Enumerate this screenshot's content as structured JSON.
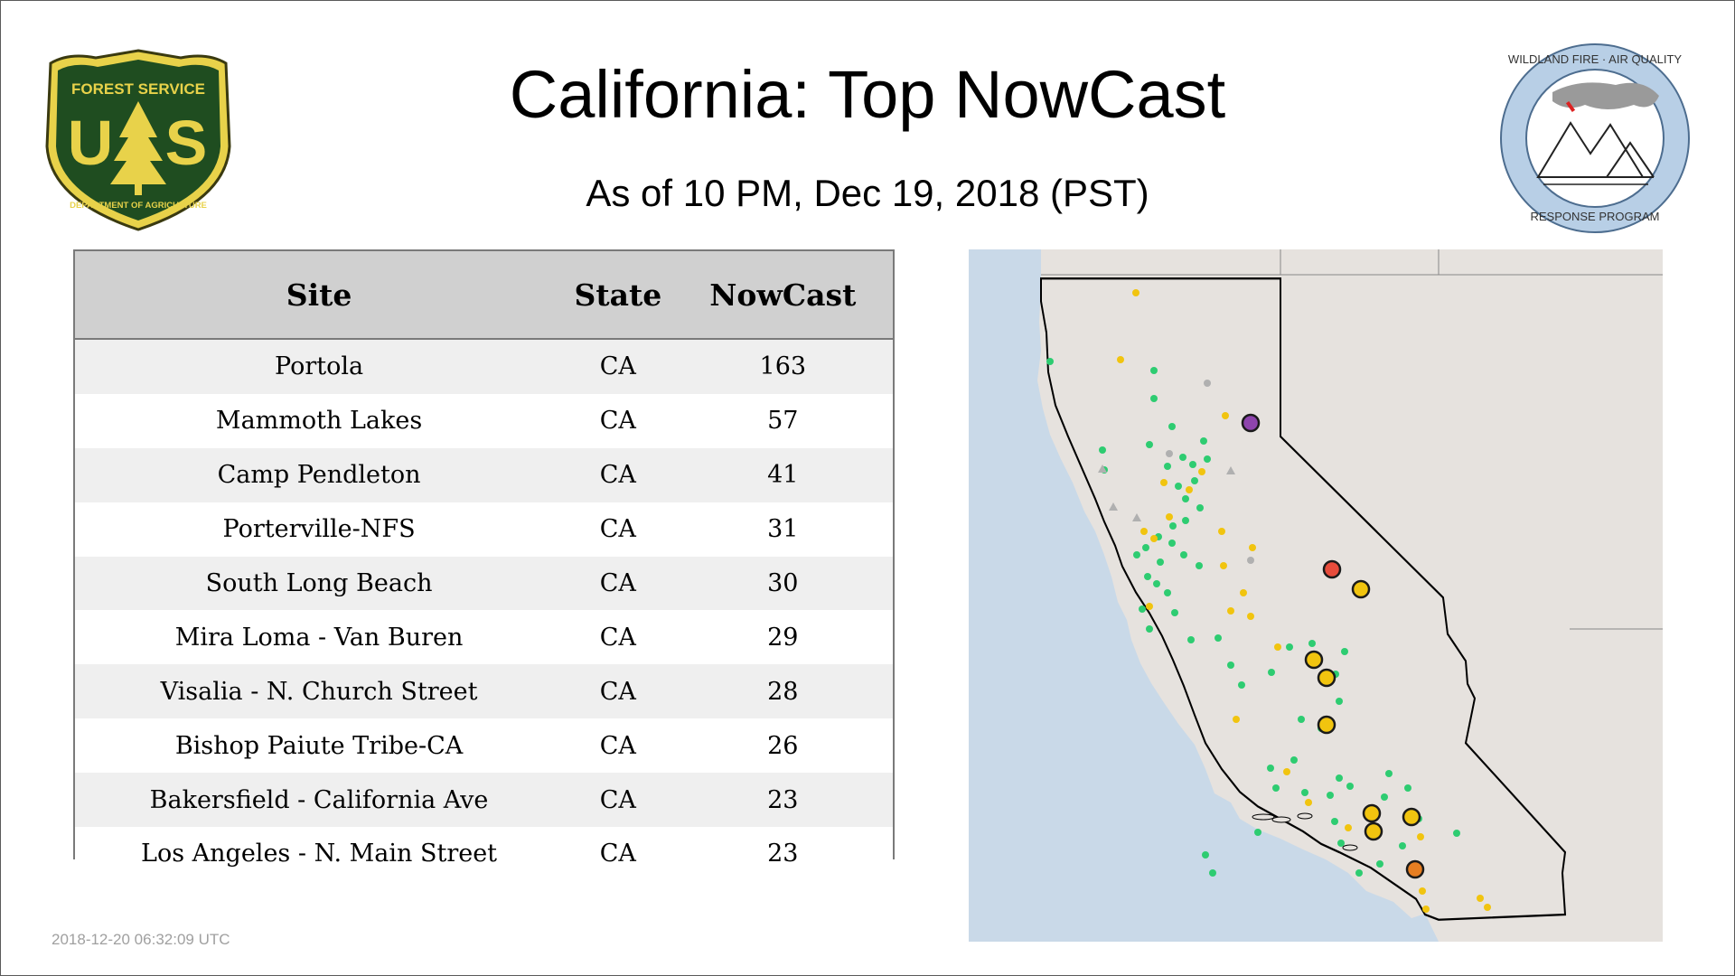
{
  "header": {
    "title": "California: Top NowCast",
    "subtitle": "As of 10 PM, Dec 19, 2018 (PST)"
  },
  "logos": {
    "left": {
      "top_text": "FOREST SERVICE",
      "initials": "U S",
      "bottom_text": "DEPARTMENT OF AGRICULTURE",
      "icon": "usfs-shield-icon"
    },
    "right": {
      "top_text": "WILDLAND FIRE · AIR QUALITY",
      "bottom_text": "RESPONSE PROGRAM",
      "icon": "wfaq-mountains-icon"
    }
  },
  "table": {
    "headers": [
      "Site",
      "State",
      "NowCast"
    ],
    "rows": [
      {
        "site": "Portola",
        "state": "CA",
        "nowcast": "163"
      },
      {
        "site": "Mammoth Lakes",
        "state": "CA",
        "nowcast": "57"
      },
      {
        "site": "Camp Pendleton",
        "state": "CA",
        "nowcast": "41"
      },
      {
        "site": "Porterville-NFS",
        "state": "CA",
        "nowcast": "31"
      },
      {
        "site": "South Long Beach",
        "state": "CA",
        "nowcast": "30"
      },
      {
        "site": "Mira Loma - Van Buren",
        "state": "CA",
        "nowcast": "29"
      },
      {
        "site": "Visalia - N. Church Street",
        "state": "CA",
        "nowcast": "28"
      },
      {
        "site": "Bishop Paiute Tribe-CA",
        "state": "CA",
        "nowcast": "26"
      },
      {
        "site": "Bakersfield - California Ave",
        "state": "CA",
        "nowcast": "23"
      },
      {
        "site": "Los Angeles - N. Main Street",
        "state": "CA",
        "nowcast": "23"
      }
    ]
  },
  "map": {
    "colors": {
      "ocean": "#c9d9e8",
      "land": "#e6e2de",
      "good": "#2ecc71",
      "moderate": "#f1c40f",
      "usg": "#e67e22",
      "unhealthy": "#e74c3c",
      "very_unhealthy": "#8e44ad",
      "no_data": "#b0b0b0"
    }
  },
  "footer": {
    "timestamp": "2018-12-20 06:32:09 UTC"
  }
}
